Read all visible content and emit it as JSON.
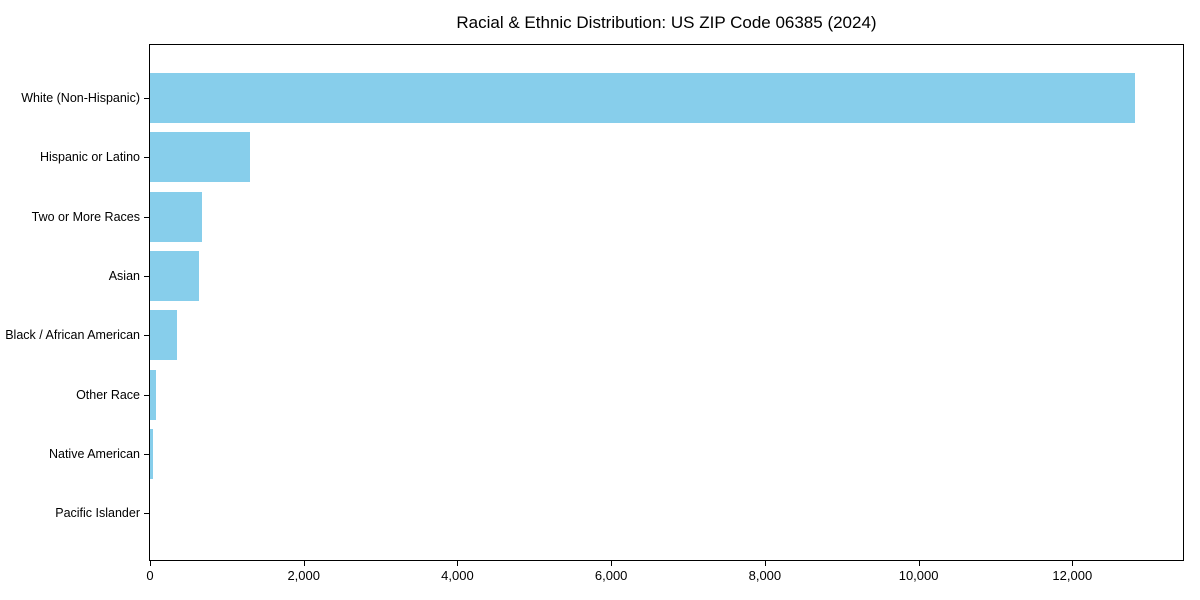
{
  "chart_data": {
    "type": "bar",
    "orientation": "horizontal",
    "title": "Racial & Ethnic Distribution: US ZIP Code 06385 (2024)",
    "categories": [
      "White (Non-Hispanic)",
      "Hispanic or Latino",
      "Two or More Races",
      "Asian",
      "Black / African American",
      "Other Race",
      "Native American",
      "Pacific Islander"
    ],
    "values": [
      12820,
      1300,
      675,
      640,
      350,
      80,
      40,
      0
    ],
    "xlabel": "",
    "ylabel": "",
    "xlim": [
      0,
      13440
    ],
    "x_ticks": [
      0,
      2000,
      4000,
      6000,
      8000,
      10000,
      12000
    ],
    "x_tick_labels": [
      "0",
      "2,000",
      "4,000",
      "6,000",
      "8,000",
      "10,000",
      "12,000"
    ],
    "bar_color": "#87CEEB",
    "background_color": "#ffffff",
    "axis_color": "#000000",
    "grid": false,
    "legend": null
  }
}
